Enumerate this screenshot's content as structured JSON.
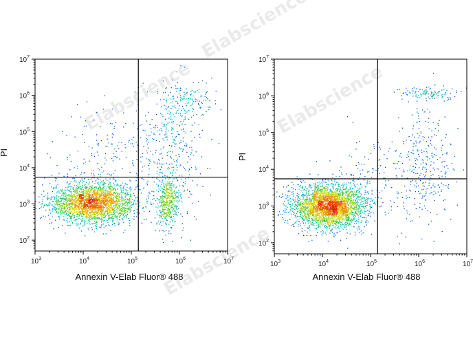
{
  "watermark": "Elabscience",
  "chart_data": [
    {
      "type": "scatter",
      "xlabel": "Annexin V-Elab Fluor® 488",
      "ylabel": "PI",
      "x_scale": "log",
      "y_scale": "log",
      "xlim": [
        1000,
        10000000
      ],
      "ylim": [
        50,
        10000000
      ],
      "x_ticks": [
        "10^3",
        "10^4",
        "10^5",
        "10^6",
        "10^7"
      ],
      "y_ticks": [
        "10^2",
        "10^3",
        "10^4",
        "10^5",
        "10^6",
        "10^7"
      ],
      "gate_x": 140000,
      "gate_y": 5500,
      "populations": [
        {
          "center": [
            16000,
            1100
          ],
          "spread": [
            0.45,
            0.28
          ],
          "count": 2600
        },
        {
          "center": [
            550000,
            1200
          ],
          "spread": [
            0.12,
            0.32
          ],
          "count": 450
        },
        {
          "center": [
            700000,
            30000
          ],
          "spread": [
            0.35,
            0.9
          ],
          "count": 350
        },
        {
          "center": [
            1500000,
            700000
          ],
          "spread": [
            0.25,
            0.25
          ],
          "count": 150
        },
        {
          "center": [
            40000,
            20000
          ],
          "spread": [
            0.7,
            0.7
          ],
          "count": 220
        }
      ]
    },
    {
      "type": "scatter",
      "xlabel": "Annexin V-Elab Fluor® 488",
      "ylabel": "PI",
      "x_scale": "log",
      "y_scale": "log",
      "xlim": [
        1000,
        10000000
      ],
      "ylim": [
        50,
        10000000
      ],
      "x_ticks": [
        "10^3",
        "10^4",
        "10^5",
        "10^6",
        "10^7"
      ],
      "y_ticks": [
        "10^2",
        "10^3",
        "10^4",
        "10^5",
        "10^6",
        "10^7"
      ],
      "gate_x": 140000,
      "gate_y": 5500,
      "populations": [
        {
          "center": [
            13000,
            1000
          ],
          "spread": [
            0.38,
            0.3
          ],
          "count": 3000
        },
        {
          "center": [
            1500000,
            1200000
          ],
          "spread": [
            0.3,
            0.1
          ],
          "count": 120
        },
        {
          "center": [
            1500000,
            15000
          ],
          "spread": [
            0.3,
            0.8
          ],
          "count": 260
        },
        {
          "center": [
            200000,
            5000
          ],
          "spread": [
            0.6,
            0.7
          ],
          "count": 180
        }
      ]
    }
  ]
}
